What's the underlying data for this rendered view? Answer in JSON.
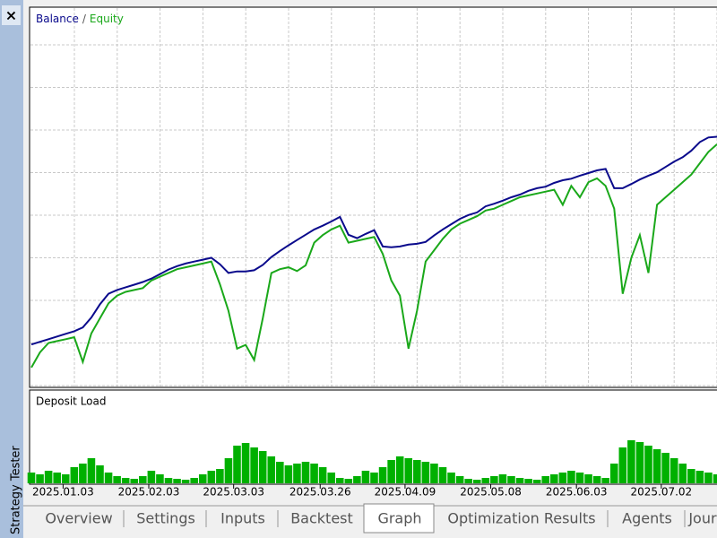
{
  "sidebar": {
    "close": "×",
    "title": "Strategy Tester"
  },
  "chart_data": [
    {
      "type": "line",
      "legend_separator": "/",
      "grid": true,
      "xlim": [
        0,
        80
      ],
      "ylim": [
        0,
        100
      ],
      "series": [
        {
          "name": "Balance",
          "color": "#0a0a8c",
          "values": [
            11.1,
            11.8,
            12.5,
            13.2,
            13.9,
            14.6,
            15.6,
            18.2,
            21.7,
            24.5,
            25.5,
            26.2,
            26.9,
            27.6,
            28.5,
            29.7,
            30.9,
            31.8,
            32.5,
            33.0,
            33.5,
            34.0,
            32.3,
            30.0,
            30.4,
            30.4,
            30.7,
            32.1,
            34.2,
            35.8,
            37.3,
            38.7,
            40.1,
            41.5,
            42.5,
            43.6,
            44.8,
            40.1,
            39.2,
            40.3,
            41.3,
            37.0,
            36.8,
            37.0,
            37.5,
            37.7,
            38.2,
            39.9,
            41.5,
            42.9,
            44.3,
            45.3,
            46.0,
            47.6,
            48.3,
            49.1,
            50.0,
            50.7,
            51.7,
            52.4,
            52.8,
            53.8,
            54.5,
            54.9,
            55.7,
            56.4,
            57.1,
            57.5,
            52.4,
            52.4,
            53.5,
            54.7,
            55.7,
            56.6,
            58.0,
            59.4,
            60.6,
            62.3,
            64.6,
            65.8,
            66.0
          ]
        },
        {
          "name": "Equity",
          "color": "#1aa81a",
          "values": [
            5.0,
            9.0,
            11.5,
            12.0,
            12.5,
            13.0,
            6.5,
            14.0,
            18.0,
            22.0,
            24.0,
            25.0,
            25.5,
            26.0,
            28.0,
            29.0,
            30.0,
            31.0,
            31.5,
            32.0,
            32.5,
            33.0,
            27.0,
            20.0,
            10.0,
            11.0,
            7.0,
            18.0,
            30.0,
            31.0,
            31.5,
            30.5,
            32.0,
            38.0,
            40.0,
            41.5,
            42.5,
            38.0,
            38.5,
            39.0,
            39.5,
            35.0,
            28.0,
            24.0,
            10.0,
            20.0,
            33.0,
            36.0,
            39.0,
            41.5,
            43.0,
            44.0,
            45.0,
            46.5,
            47.0,
            48.0,
            49.0,
            50.0,
            50.5,
            51.0,
            51.5,
            52.0,
            48.0,
            53.0,
            50.0,
            54.0,
            55.0,
            53.0,
            47.0,
            24.5,
            34.0,
            40.0,
            30.0,
            48.0,
            50.0,
            52.0,
            54.0,
            56.0,
            59.0,
            62.0,
            64.0
          ]
        }
      ]
    },
    {
      "type": "bar",
      "title": "Deposit Load",
      "color": "#00b000",
      "xlim": [
        0,
        80
      ],
      "ylim": [
        0,
        100
      ],
      "values": [
        12,
        10,
        14,
        12,
        10,
        18,
        22,
        28,
        20,
        12,
        8,
        6,
        5,
        8,
        14,
        10,
        6,
        5,
        4,
        6,
        10,
        14,
        16,
        28,
        42,
        45,
        40,
        36,
        30,
        24,
        20,
        22,
        24,
        22,
        18,
        12,
        6,
        5,
        8,
        14,
        12,
        18,
        26,
        30,
        28,
        26,
        24,
        22,
        18,
        12,
        8,
        5,
        4,
        6,
        8,
        10,
        8,
        6,
        5,
        4,
        8,
        10,
        12,
        14,
        12,
        10,
        8,
        6,
        22,
        40,
        48,
        46,
        42,
        38,
        34,
        28,
        22,
        16,
        14,
        12,
        10
      ],
      "xticks": [
        {
          "value": 3.7,
          "label": "2025.01.03"
        },
        {
          "value": 13.7,
          "label": "2025.02.03"
        },
        {
          "value": 23.6,
          "label": "2025.03.03"
        },
        {
          "value": 33.7,
          "label": "2025.03.26"
        },
        {
          "value": 43.6,
          "label": "2025.04.09"
        },
        {
          "value": 53.6,
          "label": "2025.05.08"
        },
        {
          "value": 63.6,
          "label": "2025.06.03"
        },
        {
          "value": 73.5,
          "label": "2025.07.02"
        }
      ]
    }
  ],
  "tabs": [
    "Overview",
    "Settings",
    "Inputs",
    "Backtest",
    "Graph",
    "Optimization Results",
    "Agents",
    "Journal"
  ],
  "active_tab": 4
}
